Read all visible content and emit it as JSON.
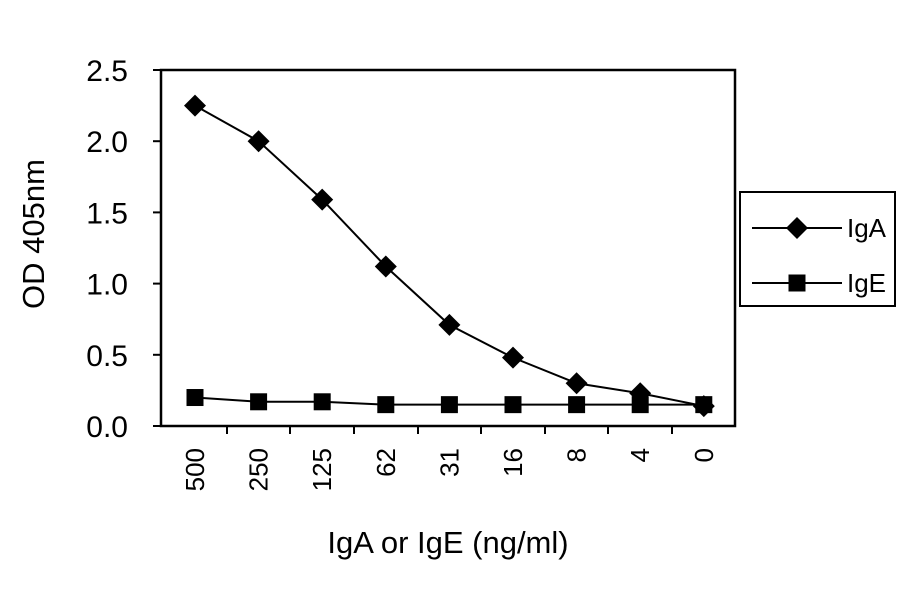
{
  "chart_data": {
    "type": "line",
    "title": "",
    "xlabel": "IgA or IgE (ng/ml)",
    "ylabel": "OD 405nm",
    "categories": [
      "500",
      "250",
      "125",
      "62",
      "31",
      "16",
      "8",
      "4",
      "0"
    ],
    "ylim": [
      0,
      2.5
    ],
    "yticks": [
      "0.0",
      "0.5",
      "1.0",
      "1.5",
      "2.0",
      "2.5"
    ],
    "grid": false,
    "legend_position": "right",
    "series": [
      {
        "name": "IgA",
        "marker": "diamond",
        "color": "#000000",
        "values": [
          2.25,
          2.0,
          1.59,
          1.12,
          0.71,
          0.48,
          0.3,
          0.23,
          0.14
        ]
      },
      {
        "name": "IgE",
        "marker": "square",
        "color": "#000000",
        "values": [
          0.2,
          0.17,
          0.17,
          0.15,
          0.15,
          0.15,
          0.15,
          0.15,
          0.15
        ]
      }
    ]
  }
}
